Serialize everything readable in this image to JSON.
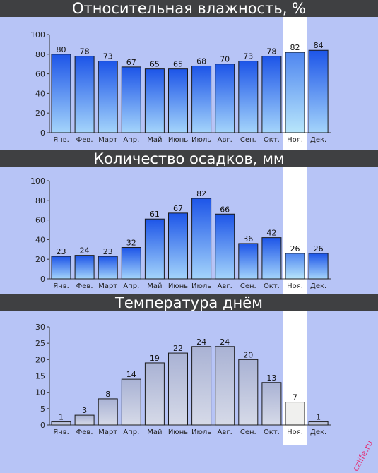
{
  "colors": {
    "background": "#b7c4f6",
    "title_bar": "#3f4042",
    "highlight_column": "#ffffff",
    "blue_bar_top": "#1d55e8",
    "blue_bar_bottom": "#a4d4fb",
    "grey_bar_top": "#a9b2d4",
    "grey_bar_bottom": "#d6dae8",
    "highlight_bar_fill": "#f0f0ee",
    "watermark": "#e0357a"
  },
  "months": [
    "Янв.",
    "Фев.",
    "Март",
    "Апр.",
    "Май",
    "Июнь",
    "Июль",
    "Авг.",
    "Сен.",
    "Окт.",
    "Ноя.",
    "Дек."
  ],
  "highlight_month": "Ноя.",
  "watermark_text": "czlife.ru",
  "chart_data": [
    {
      "type": "bar",
      "title": "Относительная влажность, %",
      "categories": [
        "Янв.",
        "Фев.",
        "Март",
        "Апр.",
        "Май",
        "Июнь",
        "Июль",
        "Авг.",
        "Сен.",
        "Окт.",
        "Ноя.",
        "Дек."
      ],
      "values": [
        80,
        78,
        73,
        67,
        65,
        65,
        68,
        70,
        73,
        78,
        82,
        84
      ],
      "ylim": [
        0,
        100
      ],
      "yticks": [
        0,
        20,
        40,
        60,
        80,
        100
      ],
      "style": "blue",
      "grid": false
    },
    {
      "type": "bar",
      "title": "Количество осадков, мм",
      "categories": [
        "Янв.",
        "Фев.",
        "Март",
        "Апр.",
        "Май",
        "Июнь",
        "Июль",
        "Авг.",
        "Сен.",
        "Окт.",
        "Ноя.",
        "Дек."
      ],
      "values": [
        23,
        24,
        23,
        32,
        61,
        67,
        82,
        66,
        36,
        42,
        26,
        26
      ],
      "ylim": [
        0,
        100
      ],
      "yticks": [
        0,
        20,
        40,
        60,
        80,
        100
      ],
      "style": "blue",
      "grid": false
    },
    {
      "type": "bar",
      "title": "Температура днём",
      "categories": [
        "Янв.",
        "Фев.",
        "Март",
        "Апр.",
        "Май",
        "Июнь",
        "Июль",
        "Авг.",
        "Сен.",
        "Окт.",
        "Ноя.",
        "Дек."
      ],
      "values": [
        1,
        3,
        8,
        14,
        19,
        22,
        24,
        24,
        20,
        13,
        7,
        1
      ],
      "ylim": [
        0,
        30
      ],
      "yticks": [
        0,
        5,
        10,
        15,
        20,
        25,
        30
      ],
      "style": "grey",
      "grid": false
    }
  ]
}
